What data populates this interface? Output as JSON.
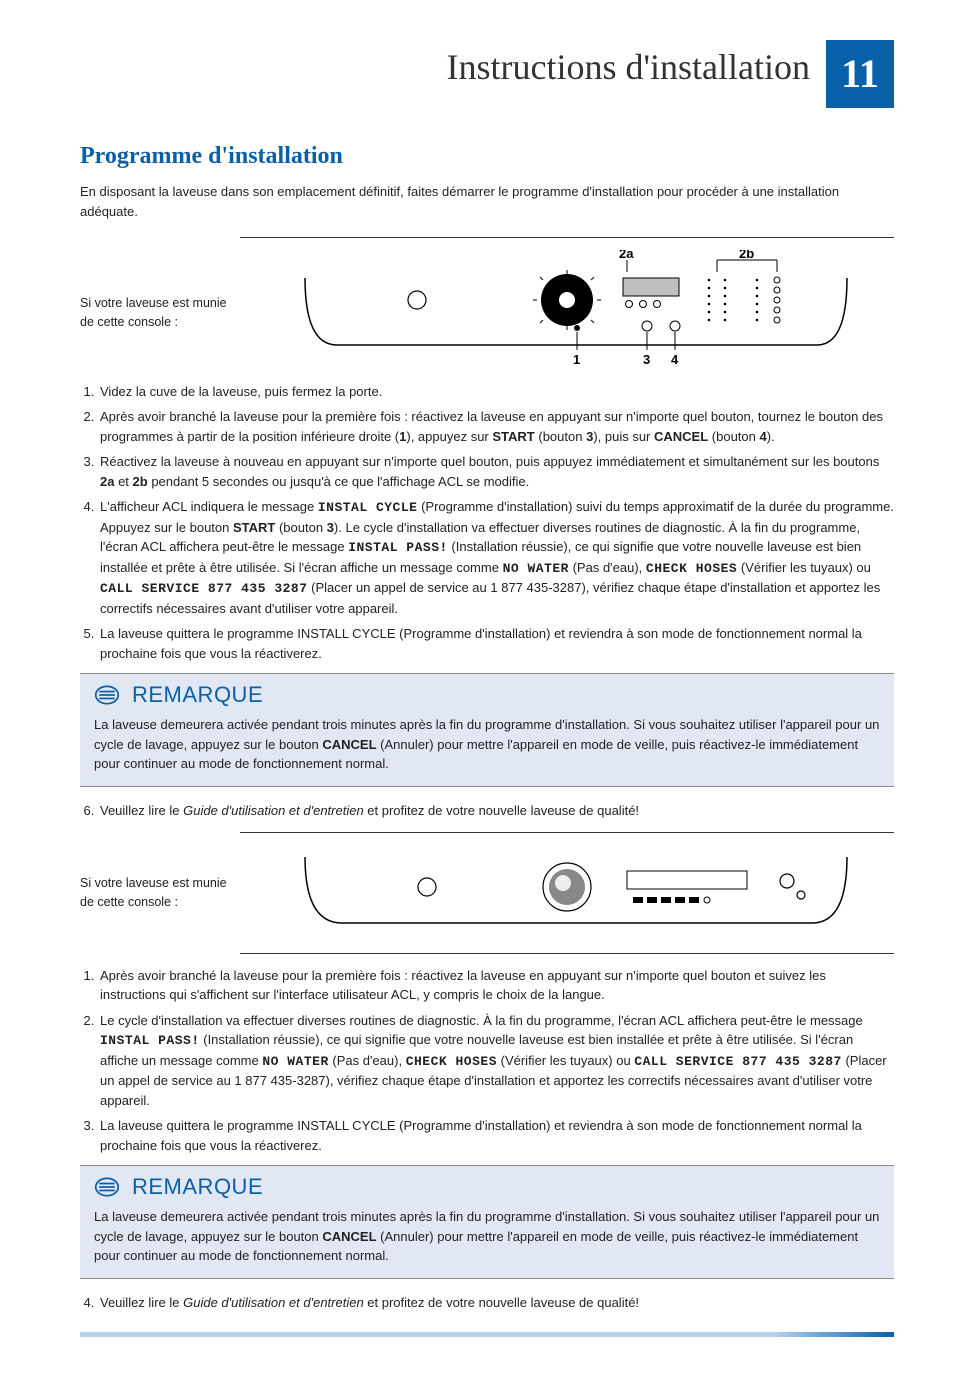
{
  "header": {
    "title": "Instructions d'installation",
    "page_number": "11"
  },
  "section": {
    "title": "Programme d'installation",
    "intro": "En disposant la laveuse dans son emplacement définitif, faites démarrer le programme d'installation pour procéder à une installation adéquate."
  },
  "console_a": {
    "label": "Si votre laveuse est munie de cette console :",
    "callouts": {
      "top_left": "2a",
      "top_right": "2b",
      "bottom_1": "1",
      "bottom_3": "3",
      "bottom_4": "4"
    },
    "colors": {
      "stroke": "#000000",
      "fill": "#ffffff",
      "lcd_fill": "#bfbfbf"
    }
  },
  "steps_a": [
    "Videz la cuve de la laveuse, puis fermez la porte.",
    "Après avoir branché la laveuse pour la première fois : réactivez la laveuse en appuyant sur n'importe quel bouton, tournez le bouton des programmes à partir de la position inférieure droite (<b>1</b>), appuyez sur <b>START</b> (bouton <b>3</b>), puis sur <b>CANCEL</b> (bouton <b>4</b>).",
    "Réactivez la laveuse à nouveau en appuyant sur n'importe quel bouton, puis appuyez immédiatement et simultanément sur les boutons <b>2a</b> et <b>2b</b> pendant 5 secondes ou jusqu'à ce que l'affichage ACL se modifie.",
    "L'afficheur ACL indiquera le message <span class=\"lcd\">INSTAL CYCLE</span> (Programme d'installation) suivi du temps approximatif de la durée du programme. Appuyez sur le bouton <b>START</b> (bouton <b>3</b>). Le cycle d'installation va effectuer diverses routines de diagnostic. À la fin du programme, l'écran ACL affichera peut-être le message <span class=\"lcd\">INSTAL PASS!</span> (Installation réussie), ce qui signifie que votre nouvelle laveuse est bien installée et prête à être utilisée. Si l'écran affiche un message comme <span class=\"lcd\">NO WATER</span> (Pas d'eau), <span class=\"lcd\">CHECK HOSES</span> (Vérifier les tuyaux) ou <span class=\"lcd\">CALL SERVICE 877 435 3287</span> (Placer un appel de service au 1 877 435-3287), vérifiez chaque étape d'installation et apportez les correctifs nécessaires avant d'utiliser votre appareil.",
    "La laveuse quittera le programme INSTALL CYCLE (Programme d'installation) et reviendra à son mode de fonctionnement normal la prochaine fois que vous la réactiverez."
  ],
  "note1": {
    "title": "REMARQUE",
    "body": "La laveuse demeurera activée pendant trois minutes après la fin du programme d'installation. Si vous souhaitez utiliser l'appareil pour un cycle de lavage, appuyez sur le bouton <b>CANCEL</b> (Annuler) pour mettre l'appareil en mode de veille, puis réactivez-le immédiatement pour continuer au mode de fonctionnement normal."
  },
  "steps_a_tail": [
    "Veuillez lire le <em>Guide d'utilisation et d'entretien</em> et profitez de votre nouvelle laveuse de qualité!"
  ],
  "console_b": {
    "label": "Si votre laveuse est munie de cette console :",
    "colors": {
      "stroke": "#000000",
      "fill": "#ffffff"
    }
  },
  "steps_b": [
    "Après avoir branché la laveuse pour la première fois : réactivez la laveuse en appuyant sur n'importe quel bouton et suivez les instructions qui s'affichent sur l'interface utilisateur ACL, y compris le choix de la langue.",
    "Le cycle d'installation va effectuer diverses routines de diagnostic. À la fin du programme, l'écran ACL affichera peut-être le message <span class=\"lcd\">INSTAL PASS!</span> (Installation réussie), ce qui signifie que votre nouvelle laveuse est bien installée et prête à être utilisée. Si l'écran affiche un message comme <span class=\"lcd\">NO WATER</span> (Pas d'eau), <span class=\"lcd\">CHECK HOSES</span> (Vérifier les tuyaux) ou <span class=\"lcd\">CALL SERVICE 877 435 3287</span> (Placer un appel de service au 1 877 435-3287), vérifiez chaque étape d'installation et apportez les correctifs nécessaires avant d'utiliser votre appareil.",
    "La laveuse quittera le programme INSTALL CYCLE (Programme d'installation) et reviendra à son mode de fonctionnement normal la prochaine fois que vous la réactiverez."
  ],
  "note2": {
    "title": "REMARQUE",
    "body": "La laveuse demeurera activée pendant trois minutes après la fin du programme d'installation. Si vous souhaitez utiliser l'appareil pour un cycle de lavage, appuyez sur le bouton <b>CANCEL</b> (Annuler) pour mettre l'appareil en mode de veille, puis réactivez-le immédiatement pour continuer au mode de fonctionnement normal."
  },
  "steps_b_tail": [
    "Veuillez lire le <em>Guide d'utilisation et d'entretien</em> et profitez de votre nouvelle laveuse de qualité!"
  ],
  "colors": {
    "brand_blue": "#0a5fa9",
    "note_bg": "#e1e8f3",
    "text": "#222222"
  }
}
